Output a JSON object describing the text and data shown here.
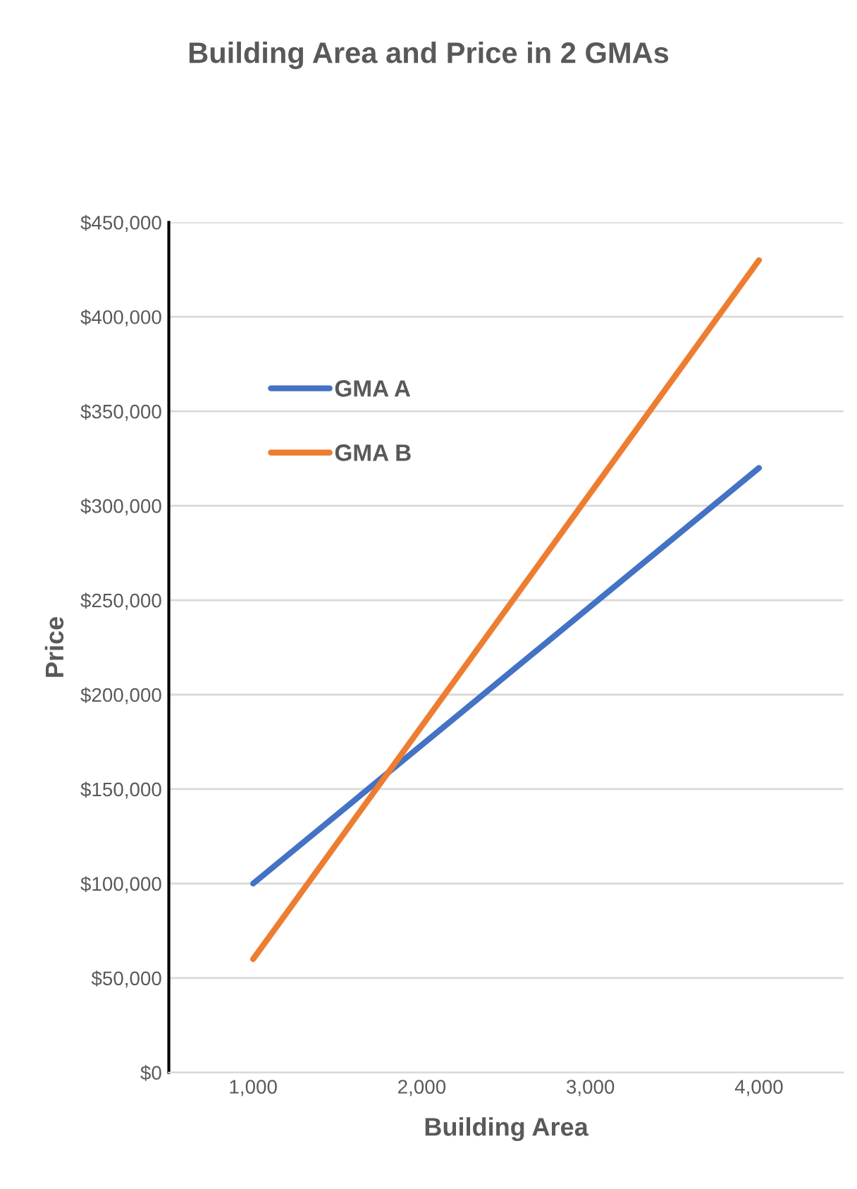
{
  "chart_data": {
    "type": "line",
    "title": "Building Area and Price in 2 GMAs",
    "xlabel": "Building Area",
    "ylabel": "Price",
    "x": [
      1000,
      4000
    ],
    "series": [
      {
        "name": "GMA A",
        "color": "#4472c4",
        "values": [
          100000,
          320000
        ]
      },
      {
        "name": "GMA B",
        "color": "#ed7d31",
        "values": [
          60000,
          430000
        ]
      }
    ],
    "xlim": [
      500,
      4500
    ],
    "xticks": [
      {
        "value": 1000,
        "label": "1,000"
      },
      {
        "value": 2000,
        "label": "2,000"
      },
      {
        "value": 3000,
        "label": "3,000"
      },
      {
        "value": 4000,
        "label": "4,000"
      }
    ],
    "ylim": [
      0,
      450000
    ],
    "yticks": [
      {
        "value": 0,
        "label": "$0"
      },
      {
        "value": 50000,
        "label": "$50,000"
      },
      {
        "value": 100000,
        "label": "$100,000"
      },
      {
        "value": 150000,
        "label": "$150,000"
      },
      {
        "value": 200000,
        "label": "$200,000"
      },
      {
        "value": 250000,
        "label": "$250,000"
      },
      {
        "value": 300000,
        "label": "$300,000"
      },
      {
        "value": 350000,
        "label": "$350,000"
      },
      {
        "value": 400000,
        "label": "$400,000"
      },
      {
        "value": 450000,
        "label": "$450,000"
      }
    ],
    "grid": "y",
    "legend": "top left",
    "marker": "none",
    "line_style": "solid"
  }
}
